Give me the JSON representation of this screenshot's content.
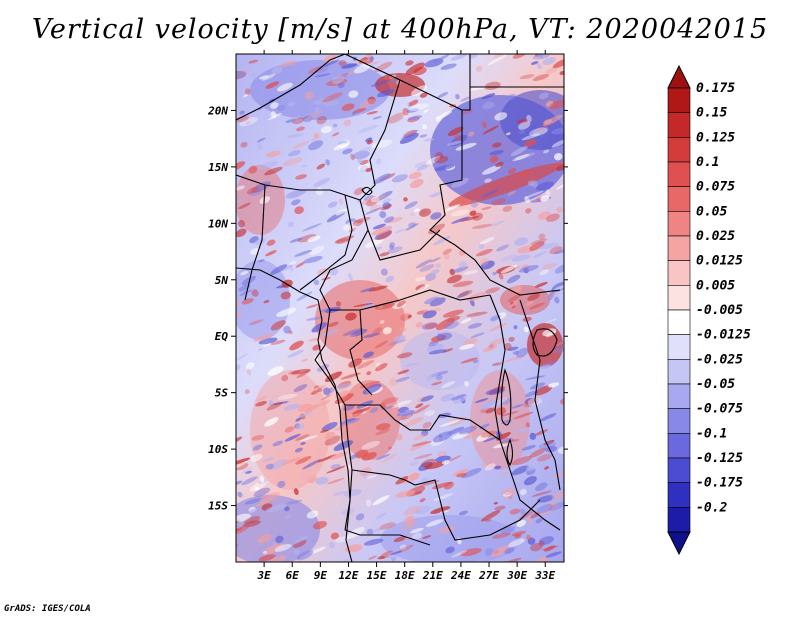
{
  "title": "Vertical velocity [m/s] at 400hPa, VT: 2020042015",
  "credit": "GrADS: IGES/COLA",
  "map": {
    "lon_range": [
      0,
      35
    ],
    "lat_range": [
      -20,
      25
    ],
    "x_ticks": [
      {
        "value": 3,
        "label": "3E"
      },
      {
        "value": 6,
        "label": "6E"
      },
      {
        "value": 9,
        "label": "9E"
      },
      {
        "value": 12,
        "label": "12E"
      },
      {
        "value": 15,
        "label": "15E"
      },
      {
        "value": 18,
        "label": "18E"
      },
      {
        "value": 21,
        "label": "21E"
      },
      {
        "value": 24,
        "label": "24E"
      },
      {
        "value": 27,
        "label": "27E"
      },
      {
        "value": 30,
        "label": "30E"
      },
      {
        "value": 33,
        "label": "33E"
      }
    ],
    "y_ticks": [
      {
        "value": 20,
        "label": "20N"
      },
      {
        "value": 15,
        "label": "15N"
      },
      {
        "value": 10,
        "label": "10N"
      },
      {
        "value": 5,
        "label": "5N"
      },
      {
        "value": 0,
        "label": "EQ"
      },
      {
        "value": -5,
        "label": "5S"
      },
      {
        "value": -10,
        "label": "10S"
      },
      {
        "value": -15,
        "label": "15S"
      }
    ]
  },
  "colorbar": {
    "levels": [
      {
        "label": "0.175",
        "color": "#b01818"
      },
      {
        "label": "0.15",
        "color": "#c42828"
      },
      {
        "label": "0.125",
        "color": "#d43c3c"
      },
      {
        "label": "0.1",
        "color": "#e05050"
      },
      {
        "label": "0.075",
        "color": "#e86868"
      },
      {
        "label": "0.05",
        "color": "#f08484"
      },
      {
        "label": "0.025",
        "color": "#f5a4a4"
      },
      {
        "label": "0.0125",
        "color": "#f9c4c4"
      },
      {
        "label": "0.005",
        "color": "#fde2e2"
      },
      {
        "label": "-0.005",
        "color": "#ffffff"
      },
      {
        "label": "-0.0125",
        "color": "#e0e0fb"
      },
      {
        "label": "-0.025",
        "color": "#c6c6f6"
      },
      {
        "label": "-0.05",
        "color": "#a8a8f0"
      },
      {
        "label": "-0.075",
        "color": "#8888e8"
      },
      {
        "label": "-0.1",
        "color": "#6a6ade"
      },
      {
        "label": "-0.125",
        "color": "#4c4cd2"
      },
      {
        "label": "-0.175",
        "color": "#3030c0"
      },
      {
        "label": "-0.2",
        "color": "#1c1ca8"
      }
    ],
    "top_cap_color": "#a01010",
    "bottom_cap_color": "#10108c"
  }
}
